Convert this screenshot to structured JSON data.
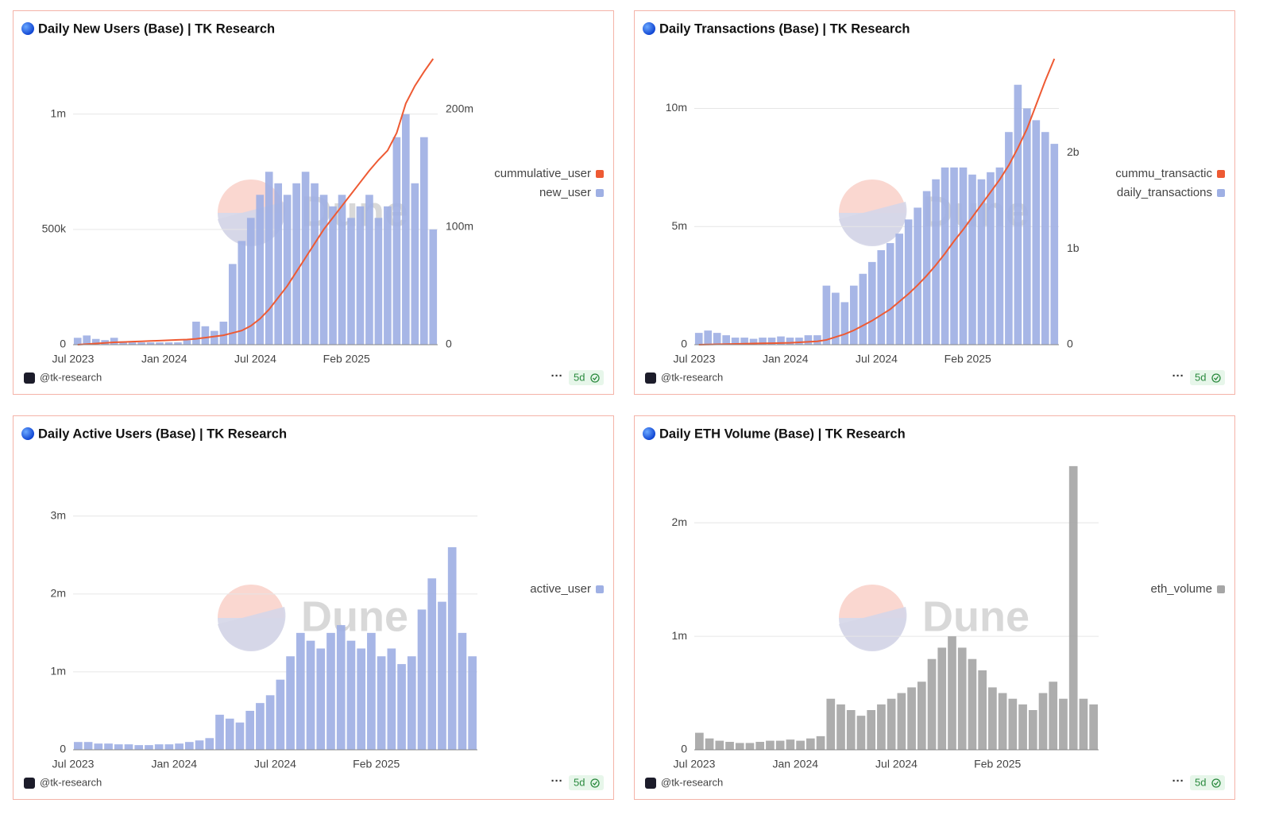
{
  "chart_data": [
    {
      "type": "combo",
      "title": "Daily New Users (Base) | TK Research",
      "watermark": "Dune",
      "source": "@tk-research",
      "badge": "5d",
      "categories": [
        "Jul 2023",
        null,
        null,
        null,
        null,
        null,
        null,
        null,
        null,
        null,
        "Jan 2024",
        null,
        null,
        null,
        null,
        null,
        null,
        null,
        null,
        null,
        "Jul 2024",
        null,
        null,
        null,
        null,
        null,
        null,
        null,
        null,
        null,
        "Feb 2025",
        null,
        null,
        null,
        null,
        null,
        null,
        null,
        null,
        null
      ],
      "series": [
        {
          "name": "cummulative_user",
          "type": "line",
          "axis": "y2",
          "color": "#ee5a33",
          "values": [
            0,
            500000,
            1000000,
            1500000,
            2000000,
            2300000,
            2600000,
            2900000,
            3200000,
            3500000,
            3800000,
            4100000,
            4400000,
            5000000,
            6000000,
            7000000,
            8000000,
            10000000,
            12000000,
            16000000,
            22000000,
            30000000,
            40000000,
            50000000,
            62000000,
            74000000,
            86000000,
            98000000,
            108000000,
            118000000,
            128000000,
            138000000,
            148000000,
            157000000,
            165000000,
            180000000,
            205000000,
            220000000,
            232000000,
            243000000
          ]
        },
        {
          "name": "new_user",
          "type": "bar",
          "color": "#9fb0e4",
          "values": [
            30000,
            40000,
            25000,
            20000,
            30000,
            15000,
            10000,
            10000,
            10000,
            10000,
            10000,
            10000,
            20000,
            100000,
            80000,
            60000,
            100000,
            350000,
            450000,
            550000,
            650000,
            750000,
            700000,
            650000,
            700000,
            750000,
            700000,
            650000,
            600000,
            650000,
            550000,
            600000,
            650000,
            550000,
            600000,
            900000,
            1000000,
            700000,
            900000,
            500000
          ]
        }
      ],
      "ylim": [
        0,
        1240000
      ],
      "yticks": [
        0,
        {
          "value": 500000,
          "label": "500k"
        },
        {
          "value": 1000000,
          "label": "1m"
        }
      ],
      "y2lim": [
        0,
        243000000
      ],
      "y2ticks": [
        0,
        {
          "value": 100000000,
          "label": "100m"
        },
        {
          "value": 200000000,
          "label": "200m"
        }
      ],
      "grid": true,
      "legend": "right"
    },
    {
      "type": "combo",
      "title": "Daily Transactions (Base) | TK Research",
      "watermark": "Dune",
      "source": "@tk-research",
      "badge": "5d",
      "categories": [
        "Jul 2023",
        null,
        null,
        null,
        null,
        null,
        null,
        null,
        null,
        null,
        "Jan 2024",
        null,
        null,
        null,
        null,
        null,
        null,
        null,
        null,
        null,
        "Jul 2024",
        null,
        null,
        null,
        null,
        null,
        null,
        null,
        null,
        null,
        "Feb 2025",
        null,
        null,
        null,
        null,
        null,
        null,
        null,
        null,
        null
      ],
      "series": [
        {
          "name": "cummu_transactic",
          "type": "line",
          "axis": "y2",
          "color": "#ee5a33",
          "values": [
            0,
            2000000,
            4000000,
            6000000,
            8000000,
            10000000,
            12000000,
            14000000,
            16000000,
            18000000,
            20000000,
            25000000,
            30000000,
            35000000,
            50000000,
            80000000,
            110000000,
            150000000,
            200000000,
            250000000,
            310000000,
            370000000,
            450000000,
            530000000,
            620000000,
            720000000,
            830000000,
            950000000,
            1080000000,
            1200000000,
            1330000000,
            1460000000,
            1590000000,
            1720000000,
            1870000000,
            2050000000,
            2250000000,
            2500000000,
            2750000000,
            2980000000
          ]
        },
        {
          "name": "daily_transactions",
          "type": "bar",
          "color": "#9fb0e4",
          "values": [
            500000,
            600000,
            500000,
            400000,
            300000,
            300000,
            250000,
            300000,
            300000,
            350000,
            300000,
            300000,
            400000,
            400000,
            2500000,
            2200000,
            1800000,
            2500000,
            3000000,
            3500000,
            4000000,
            4300000,
            4700000,
            5300000,
            5800000,
            6500000,
            7000000,
            7500000,
            7500000,
            7500000,
            7200000,
            7000000,
            7300000,
            7500000,
            9000000,
            11000000,
            10000000,
            9500000,
            9000000,
            8500000
          ]
        }
      ],
      "ylim": [
        0,
        12100000
      ],
      "yticks": [
        0,
        {
          "value": 5000000,
          "label": "5m"
        },
        {
          "value": 10000000,
          "label": "10m"
        }
      ],
      "y2lim": [
        0,
        2980000000
      ],
      "y2ticks": [
        0,
        {
          "value": 1000000000,
          "label": "1b"
        },
        {
          "value": 2000000000,
          "label": "2b"
        }
      ],
      "grid": true,
      "legend": "right"
    },
    {
      "type": "bar",
      "title": "Daily Active Users (Base) | TK Research",
      "watermark": "Dune",
      "source": "@tk-research",
      "badge": "5d",
      "categories": [
        "Jul 2023",
        null,
        null,
        null,
        null,
        null,
        null,
        null,
        null,
        null,
        "Jan 2024",
        null,
        null,
        null,
        null,
        null,
        null,
        null,
        null,
        null,
        "Jul 2024",
        null,
        null,
        null,
        null,
        null,
        null,
        null,
        null,
        null,
        "Feb 2025",
        null,
        null,
        null,
        null,
        null,
        null,
        null,
        null,
        null
      ],
      "series": [
        {
          "name": "active_user",
          "type": "bar",
          "color": "#9fb0e4",
          "values": [
            100000,
            100000,
            80000,
            80000,
            70000,
            70000,
            60000,
            60000,
            70000,
            70000,
            80000,
            100000,
            120000,
            150000,
            450000,
            400000,
            350000,
            500000,
            600000,
            700000,
            900000,
            1200000,
            1500000,
            1400000,
            1300000,
            1500000,
            1600000,
            1400000,
            1300000,
            1500000,
            1200000,
            1300000,
            1100000,
            1200000,
            1800000,
            2200000,
            1900000,
            2600000,
            1500000,
            1200000
          ]
        }
      ],
      "ylim": [
        0,
        3670000
      ],
      "yticks": [
        0,
        {
          "value": 1000000,
          "label": "1m"
        },
        {
          "value": 2000000,
          "label": "2m"
        },
        {
          "value": 3000000,
          "label": "3m"
        }
      ],
      "grid": true,
      "legend": "right"
    },
    {
      "type": "bar",
      "title": "Daily ETH Volume (Base) | TK Research",
      "watermark": "Dune",
      "source": "@tk-research",
      "badge": "5d",
      "categories": [
        "Jul 2023",
        null,
        null,
        null,
        null,
        null,
        null,
        null,
        null,
        null,
        "Jan 2024",
        null,
        null,
        null,
        null,
        null,
        null,
        null,
        null,
        null,
        "Jul 2024",
        null,
        null,
        null,
        null,
        null,
        null,
        null,
        null,
        null,
        "Feb 2025",
        null,
        null,
        null,
        null,
        null,
        null,
        null,
        null,
        null
      ],
      "series": [
        {
          "name": "eth_volume",
          "type": "bar",
          "color": "#a6a6a6",
          "values": [
            150000,
            100000,
            80000,
            70000,
            60000,
            60000,
            70000,
            80000,
            80000,
            90000,
            80000,
            100000,
            120000,
            450000,
            400000,
            350000,
            300000,
            350000,
            400000,
            450000,
            500000,
            550000,
            600000,
            800000,
            900000,
            1000000,
            900000,
            800000,
            700000,
            550000,
            500000,
            450000,
            400000,
            350000,
            500000,
            600000,
            450000,
            2500000,
            450000,
            400000
          ]
        }
      ],
      "ylim": [
        0,
        2520000
      ],
      "yticks": [
        0,
        {
          "value": 1000000,
          "label": "1m"
        },
        {
          "value": 2000000,
          "label": "2m"
        }
      ],
      "grid": true,
      "legend": "right"
    }
  ]
}
